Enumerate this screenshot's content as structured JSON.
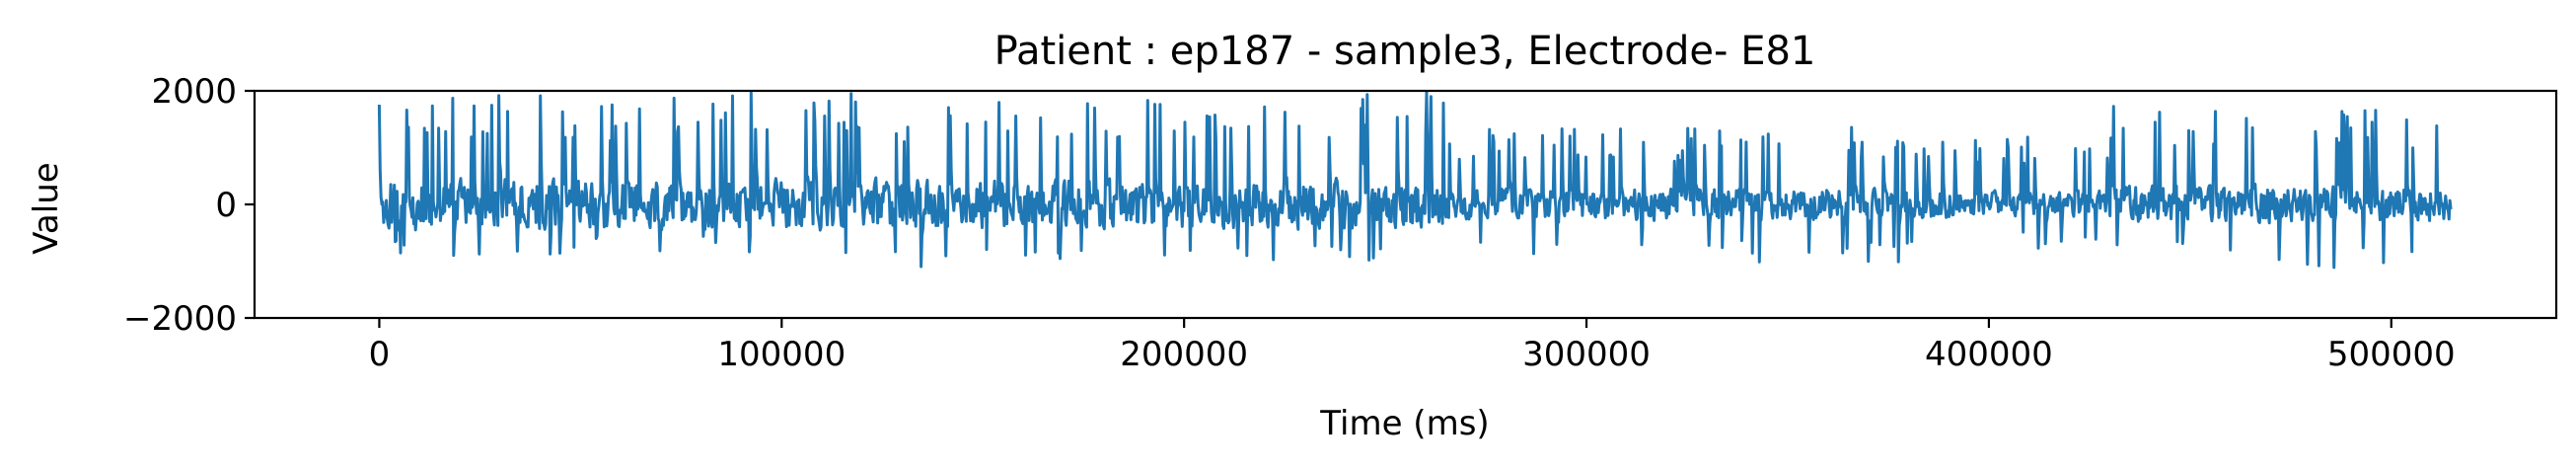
{
  "chart_data": {
    "type": "line",
    "title": "Patient : ep187 - sample3, Electrode- E81",
    "xlabel": "Time (ms)",
    "ylabel": "Value",
    "xlim": [
      -31000,
      541000
    ],
    "ylim": [
      -2000,
      2000
    ],
    "xticks": [
      {
        "value": 0,
        "label": "0"
      },
      {
        "value": 100000,
        "label": "100000"
      },
      {
        "value": 200000,
        "label": "200000"
      },
      {
        "value": 300000,
        "label": "300000"
      },
      {
        "value": 400000,
        "label": "400000"
      },
      {
        "value": 500000,
        "label": "500000"
      }
    ],
    "yticks": [
      {
        "value": -2000,
        "label": "−2000"
      },
      {
        "value": 0,
        "label": "0"
      },
      {
        "value": 2000,
        "label": "2000"
      }
    ],
    "grid": false,
    "series": [
      {
        "color": "#1f77b4",
        "x_start": 0,
        "x_end": 515000,
        "segments": [
          {
            "x_start": 0,
            "x_end": 60000,
            "spread": 450,
            "spike_max": 2000,
            "spike_min": -900
          },
          {
            "x_start": 60000,
            "x_end": 130000,
            "spread": 420,
            "spike_max": 2000,
            "spike_min": -850
          },
          {
            "x_start": 130000,
            "x_end": 200000,
            "spread": 420,
            "spike_max": 2000,
            "spike_min": -1100
          },
          {
            "x_start": 200000,
            "x_end": 265000,
            "spread": 420,
            "spike_max": 2000,
            "spike_min": -1100
          },
          {
            "x_start": 265000,
            "x_end": 340000,
            "spread": 280,
            "spike_max": 1350,
            "spike_min": -900
          },
          {
            "x_start": 340000,
            "x_end": 390000,
            "spread": 260,
            "spike_max": 1400,
            "spike_min": -1050
          },
          {
            "x_start": 390000,
            "x_end": 430000,
            "spread": 220,
            "spike_max": 1200,
            "spike_min": -800
          },
          {
            "x_start": 430000,
            "x_end": 470000,
            "spread": 320,
            "spike_max": 1800,
            "spike_min": -1000
          },
          {
            "x_start": 470000,
            "x_end": 515000,
            "spread": 300,
            "spike_max": 1700,
            "spike_min": -1150
          }
        ]
      }
    ]
  }
}
